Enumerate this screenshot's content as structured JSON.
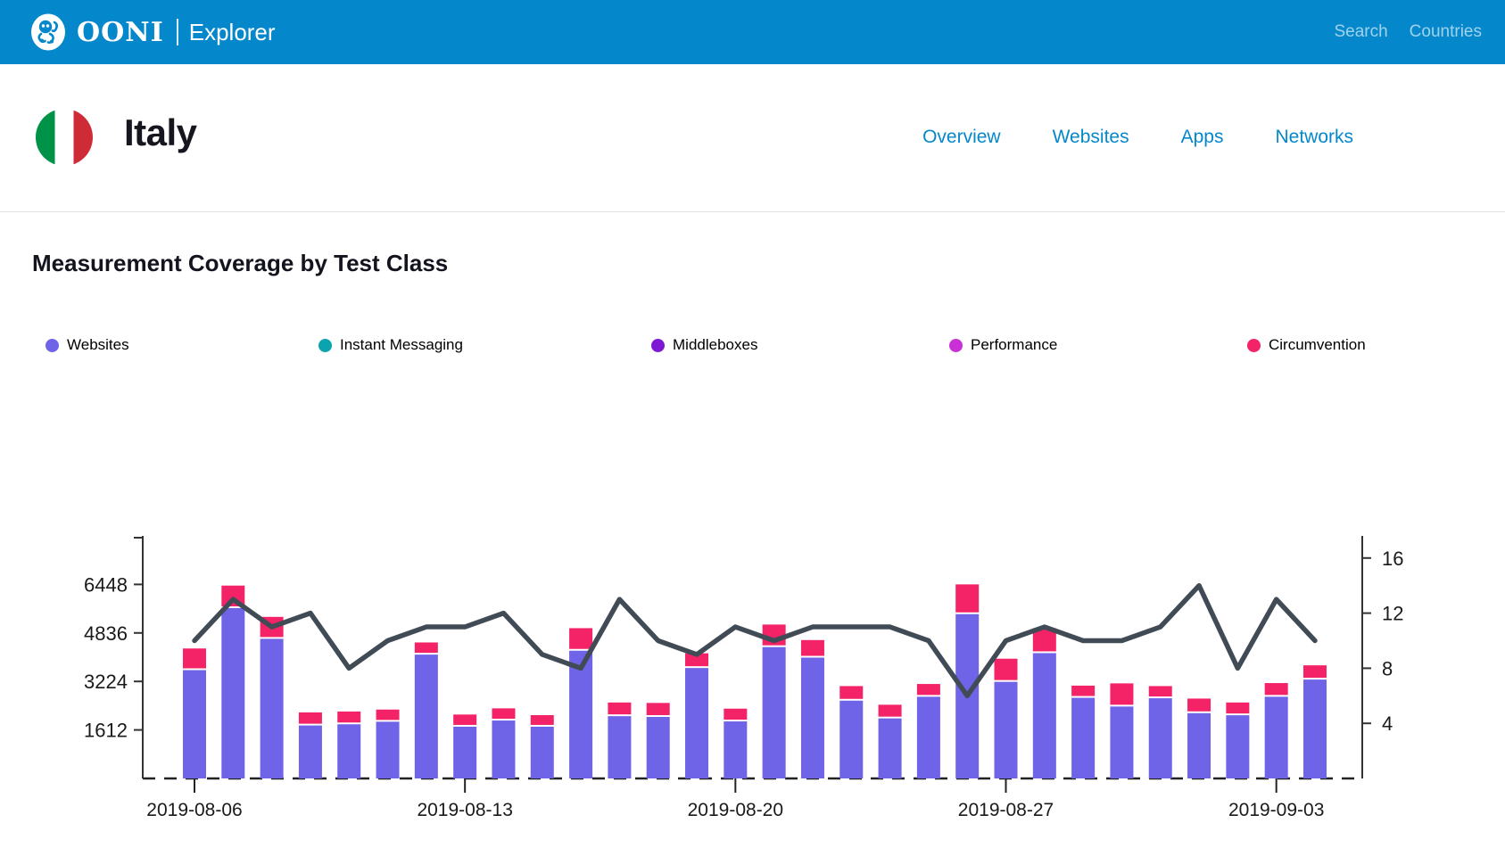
{
  "header": {
    "brand": "OONI",
    "brand_sub": "Explorer",
    "nav": [
      {
        "label": "Search"
      },
      {
        "label": "Countries"
      }
    ]
  },
  "country": {
    "name": "Italy",
    "nav": [
      {
        "label": "Overview"
      },
      {
        "label": "Websites"
      },
      {
        "label": "Apps"
      },
      {
        "label": "Networks"
      }
    ]
  },
  "section": {
    "title": "Measurement Coverage by Test Class"
  },
  "legend": [
    {
      "label": "Websites",
      "color": "#6F63E7"
    },
    {
      "label": "Instant Messaging",
      "color": "#0BA3AD"
    },
    {
      "label": "Middleboxes",
      "color": "#7D17D4"
    },
    {
      "label": "Performance",
      "color": "#CB2FD6"
    },
    {
      "label": "Circumvention",
      "color": "#F42368"
    }
  ],
  "colors": {
    "header_blue": "#0588CB",
    "link_blue": "#0588CB",
    "bar_websites": "#6F63E7",
    "bar_circumvention": "#F42368",
    "line_networks": "#414B56",
    "axis": "#333333"
  },
  "chart_data": {
    "type": "bar+line",
    "title": "Measurement Coverage by Test Class",
    "x": [
      "2019-08-06",
      "2019-08-07",
      "2019-08-08",
      "2019-08-09",
      "2019-08-10",
      "2019-08-11",
      "2019-08-12",
      "2019-08-13",
      "2019-08-14",
      "2019-08-15",
      "2019-08-16",
      "2019-08-17",
      "2019-08-18",
      "2019-08-19",
      "2019-08-20",
      "2019-08-21",
      "2019-08-22",
      "2019-08-23",
      "2019-08-24",
      "2019-08-25",
      "2019-08-26",
      "2019-08-27",
      "2019-08-28",
      "2019-08-29",
      "2019-08-30",
      "2019-08-31",
      "2019-09-01",
      "2019-09-02",
      "2019-09-03",
      "2019-09-04"
    ],
    "bar_series": [
      {
        "name": "Websites",
        "color": "#6F63E7",
        "values": [
          3600,
          5660,
          4640,
          1760,
          1800,
          1885,
          4115,
          1720,
          1925,
          1720,
          4245,
          2070,
          2045,
          3670,
          1895,
          4365,
          4015,
          2585,
          1995,
          2715,
          5460,
          3210,
          4165,
          2680,
          2390,
          2665,
          2170,
          2100,
          2715,
          3285
        ]
      },
      {
        "name": "Circumvention",
        "color": "#F42368",
        "values": [
          660,
          690,
          670,
          375,
          365,
          345,
          345,
          345,
          345,
          325,
          690,
          395,
          405,
          430,
          365,
          690,
          525,
          425,
          395,
          365,
          930,
          710,
          770,
          345,
          710,
          345,
          425,
          365,
          395,
          415
        ]
      }
    ],
    "line_series": {
      "name": "Networks",
      "color": "#414B56",
      "axis": "right",
      "values": [
        10,
        13,
        11,
        12,
        8,
        10,
        11,
        11,
        12,
        9,
        8,
        13,
        10,
        9,
        11,
        10,
        11,
        11,
        11,
        10,
        6,
        10,
        11,
        10,
        10,
        11,
        14,
        8,
        13,
        10
      ]
    },
    "left_axis": {
      "ticks": [
        1612,
        3224,
        4836,
        6448
      ],
      "range": [
        0,
        8060
      ]
    },
    "right_axis": {
      "ticks": [
        4,
        8,
        12,
        16
      ],
      "range": [
        0,
        17.5
      ]
    },
    "x_ticks": [
      {
        "index": 0,
        "label": "2019-08-06"
      },
      {
        "index": 7,
        "label": "2019-08-13"
      },
      {
        "index": 14,
        "label": "2019-08-20"
      },
      {
        "index": 21,
        "label": "2019-08-27"
      },
      {
        "index": 28,
        "label": "2019-09-03"
      }
    ],
    "grid": false,
    "legend_position": "top"
  }
}
